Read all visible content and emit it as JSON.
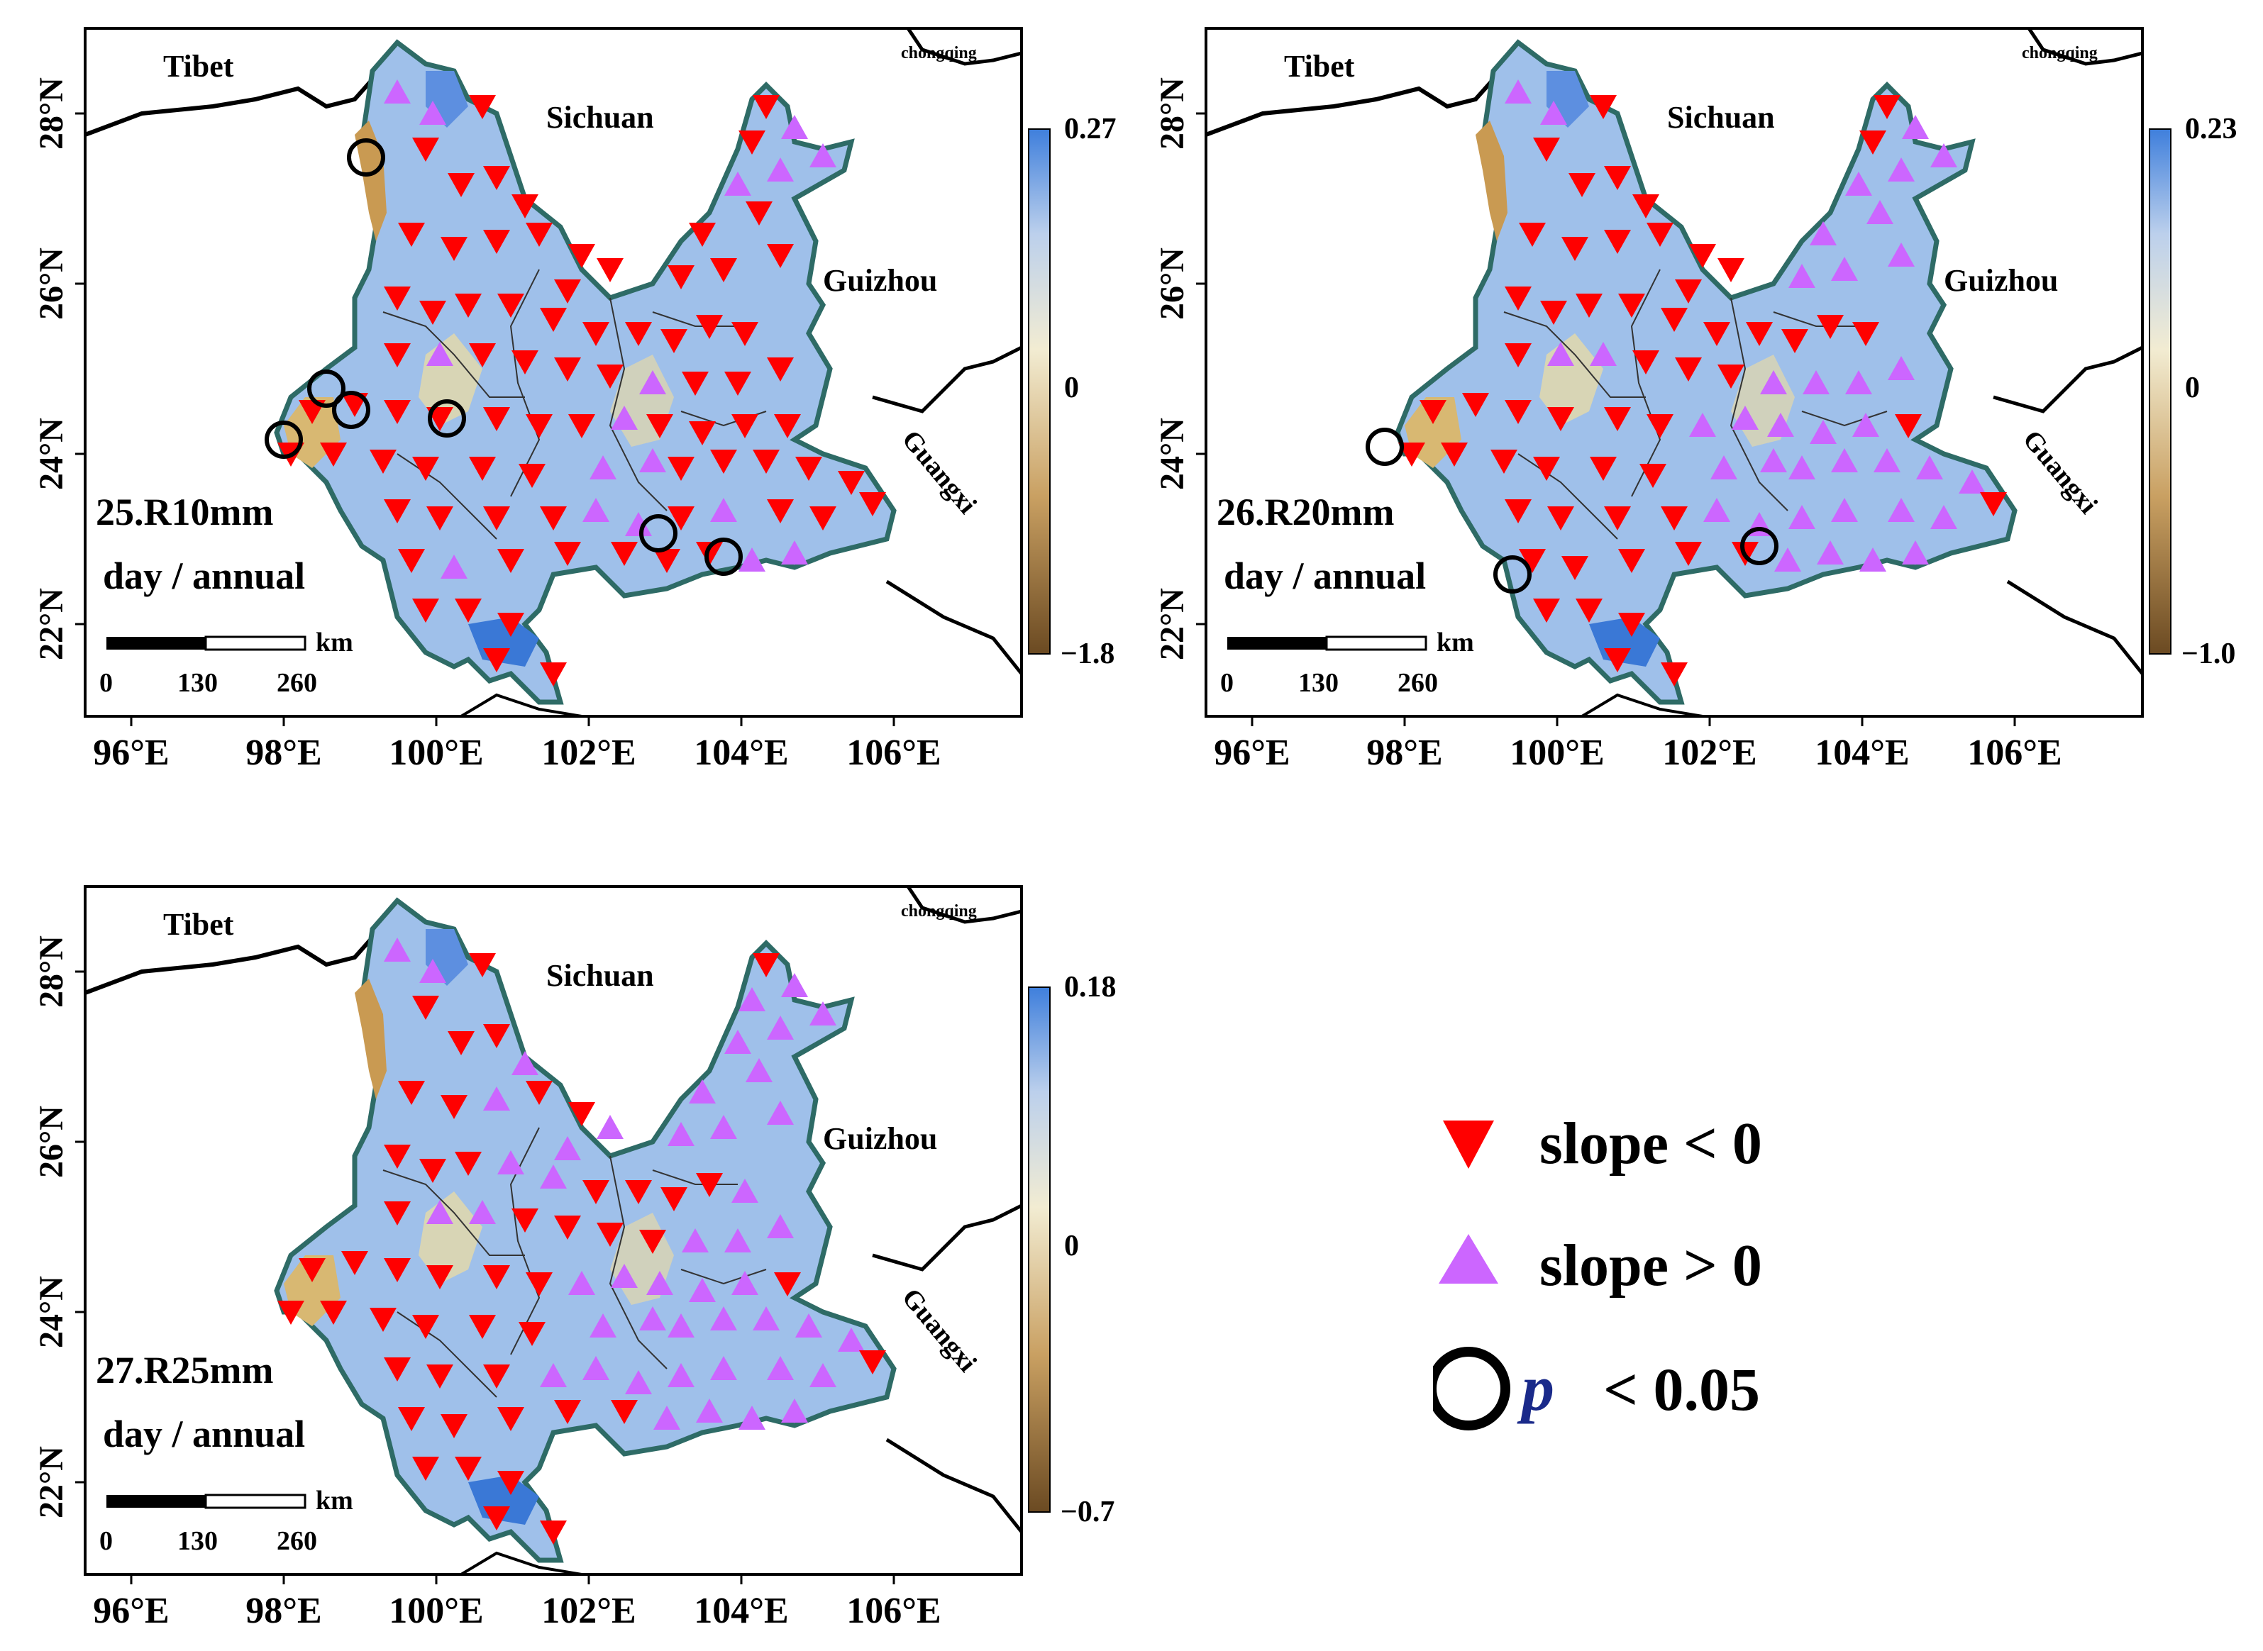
{
  "panels": [
    {
      "label_line1": "25.R10mm",
      "label_line2": "day / annual",
      "colorbar": {
        "max": "0.27",
        "mid": "0",
        "min": "−1.8"
      },
      "neighbors": {
        "tibet": "Tibet",
        "sichuan": "Sichuan",
        "guizhou": "Guizhou",
        "guangxi": "Guangxi",
        "chongqing": "chongqing"
      },
      "lon_labels": [
        "96°E",
        "98°E",
        "100°E",
        "102°E",
        "104°E",
        "106°E"
      ],
      "lat_labels": [
        "28°N",
        "26°N",
        "24°N",
        "22°N"
      ],
      "scalebar": {
        "unit": "km",
        "ticks": [
          "0",
          "130",
          "260"
        ]
      }
    },
    {
      "label_line1": "26.R20mm",
      "label_line2": "day / annual",
      "colorbar": {
        "max": "0.23",
        "mid": "0",
        "min": "−1.0"
      },
      "neighbors": {
        "tibet": "Tibet",
        "sichuan": "Sichuan",
        "guizhou": "Guizhou",
        "guangxi": "Guangxi",
        "chongqing": "chongqing"
      },
      "lon_labels": [
        "96°E",
        "98°E",
        "100°E",
        "102°E",
        "104°E",
        "106°E"
      ],
      "lat_labels": [
        "28°N",
        "26°N",
        "24°N",
        "22°N"
      ],
      "scalebar": {
        "unit": "km",
        "ticks": [
          "0",
          "130",
          "260"
        ]
      }
    },
    {
      "label_line1": "27.R25mm",
      "label_line2": "day / annual",
      "colorbar": {
        "max": "0.18",
        "mid": "0",
        "min": "−0.7"
      },
      "neighbors": {
        "tibet": "Tibet",
        "sichuan": "Sichuan",
        "guizhou": "Guizhou",
        "guangxi": "Guangxi",
        "chongqing": "chongqing"
      },
      "lon_labels": [
        "96°E",
        "98°E",
        "100°E",
        "102°E",
        "104°E",
        "106°E"
      ],
      "lat_labels": [
        "28°N",
        "26°N",
        "24°N",
        "22°N"
      ],
      "scalebar": {
        "unit": "km",
        "ticks": [
          "0",
          "130",
          "260"
        ]
      }
    }
  ],
  "legend": {
    "neg_label": "slope < 0",
    "pos_label": "slope > 0",
    "p_symbol": "p",
    "p_label": "< 0.05",
    "neg_color": "#ff0000",
    "pos_color": "#cc66ff"
  },
  "colors": {
    "province_fill": "#9fc0ea",
    "province_border": "#2e6b66",
    "dry_area": "#d8b872",
    "neg_marker": "#ff0000",
    "pos_marker": "#cc66ff"
  }
}
